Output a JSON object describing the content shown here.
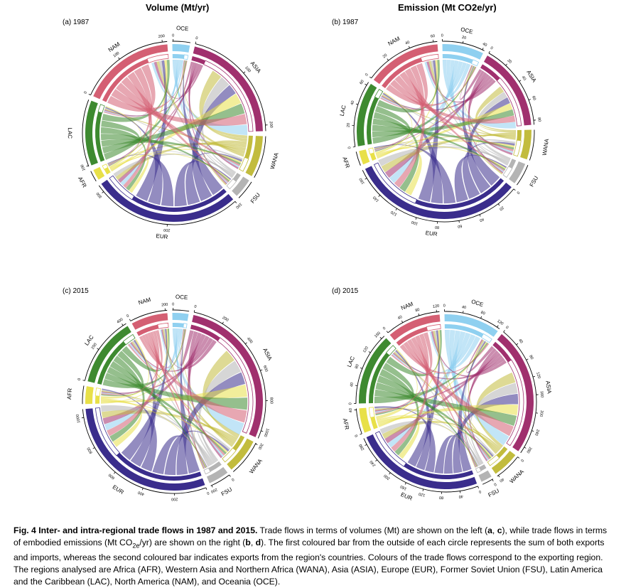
{
  "titles": {
    "left": "Volume (Mt/yr)",
    "right": "Emission (Mt CO2e/yr)"
  },
  "colors": {
    "ASIA": "#A0306E",
    "WANA": "#C2BC3E",
    "FSU": "#B4B4B4",
    "EUR": "#3A2D8C",
    "AFR": "#E8E048",
    "LAC": "#3E8A30",
    "NAM": "#D45F73",
    "OCE": "#8FD0F0"
  },
  "region_order": [
    "OCE",
    "ASIA",
    "WANA",
    "FSU",
    "EUR",
    "AFR",
    "LAC",
    "NAM"
  ],
  "chart_data": [
    {
      "type": "chord",
      "panel_label": "(a) 1987",
      "title": "Volume (Mt/yr)",
      "segments": [
        {
          "region": "OCE",
          "total": 40,
          "exports": 30,
          "ticks": [
            "0"
          ]
        },
        {
          "region": "ASIA",
          "total": 265,
          "exports": 35,
          "ticks": [
            "0",
            "100",
            "200"
          ]
        },
        {
          "region": "WANA",
          "total": 95,
          "exports": 60,
          "ticks": []
        },
        {
          "region": "FSU",
          "total": 45,
          "exports": 20,
          "ticks": []
        },
        {
          "region": "EUR",
          "total": 340,
          "exports": 260,
          "ticks": [
            "100",
            "200",
            "300"
          ]
        },
        {
          "region": "AFR",
          "total": 25,
          "exports": 15,
          "ticks": []
        },
        {
          "region": "LAC",
          "total": 150,
          "exports": 130,
          "ticks": [
            "100"
          ]
        },
        {
          "region": "NAM",
          "total": 215,
          "exports": 160,
          "ticks": [
            "0",
            "100",
            "200"
          ]
        }
      ]
    },
    {
      "type": "chord",
      "panel_label": "(b) 1987",
      "title": "Emission (Mt CO2e/yr)",
      "segments": [
        {
          "region": "OCE",
          "total": 42,
          "exports": 35,
          "ticks": [
            "0",
            "20",
            "40"
          ]
        },
        {
          "region": "ASIA",
          "total": 85,
          "exports": 25,
          "ticks": [
            "0",
            "20",
            "40",
            "60",
            "80"
          ]
        },
        {
          "region": "WANA",
          "total": 30,
          "exports": 12,
          "ticks": []
        },
        {
          "region": "FSU",
          "total": 22,
          "exports": 10,
          "ticks": []
        },
        {
          "region": "EUR",
          "total": 175,
          "exports": 110,
          "ticks": [
            "0",
            "20",
            "40",
            "60",
            "80",
            "100",
            "120",
            "140",
            "160"
          ]
        },
        {
          "region": "AFR",
          "total": 14,
          "exports": 8,
          "ticks": []
        },
        {
          "region": "LAC",
          "total": 65,
          "exports": 55,
          "ticks": [
            "0",
            "20",
            "40",
            "60"
          ]
        },
        {
          "region": "NAM",
          "total": 75,
          "exports": 55,
          "ticks": [
            "0",
            "20",
            "40",
            "60"
          ]
        }
      ]
    },
    {
      "type": "chord",
      "panel_label": "(c) 2015",
      "title": "Volume (Mt/yr)",
      "segments": [
        {
          "region": "OCE",
          "total": 110,
          "exports": 85,
          "ticks": [
            "0"
          ]
        },
        {
          "region": "ASIA",
          "total": 1050,
          "exports": 240,
          "ticks": [
            "0",
            "200",
            "400",
            "600",
            "800",
            "1000"
          ]
        },
        {
          "region": "WANA",
          "total": 240,
          "exports": 120,
          "ticks": [
            "200"
          ]
        },
        {
          "region": "FSU",
          "total": 140,
          "exports": 100,
          "ticks": [
            "0",
            "200"
          ]
        },
        {
          "region": "EUR",
          "total": 1100,
          "exports": 700,
          "ticks": [
            "0",
            "200",
            "400",
            "600",
            "800",
            "1000"
          ]
        },
        {
          "region": "AFR",
          "total": 120,
          "exports": 60,
          "ticks": []
        },
        {
          "region": "LAC",
          "total": 470,
          "exports": 380,
          "ticks": [
            "0",
            "200",
            "400"
          ]
        },
        {
          "region": "NAM",
          "total": 250,
          "exports": 170,
          "ticks": [
            "0",
            "200"
          ]
        }
      ]
    },
    {
      "type": "chord",
      "panel_label": "(d) 2015",
      "title": "Emission (Mt CO2e/yr)",
      "segments": [
        {
          "region": "OCE",
          "total": 125,
          "exports": 100,
          "ticks": [
            "0",
            "40",
            "80",
            "120"
          ]
        },
        {
          "region": "ASIA",
          "total": 285,
          "exports": 60,
          "ticks": [
            "0",
            "40",
            "80",
            "120",
            "160",
            "200",
            "240",
            "280"
          ]
        },
        {
          "region": "WANA",
          "total": 60,
          "exports": 30,
          "ticks": [
            "0",
            "40"
          ]
        },
        {
          "region": "FSU",
          "total": 25,
          "exports": 15,
          "ticks": [
            "0"
          ]
        },
        {
          "region": "EUR",
          "total": 290,
          "exports": 180,
          "ticks": [
            "0",
            "40",
            "80",
            "120",
            "160",
            "200",
            "240",
            "280"
          ]
        },
        {
          "region": "AFR",
          "total": 55,
          "exports": 30,
          "ticks": [
            "0",
            "40"
          ]
        },
        {
          "region": "LAC",
          "total": 160,
          "exports": 135,
          "ticks": [
            "0",
            "40",
            "80",
            "120",
            "160"
          ]
        },
        {
          "region": "NAM",
          "total": 120,
          "exports": 85,
          "ticks": [
            "0",
            "40",
            "80",
            "120"
          ]
        }
      ]
    }
  ],
  "caption": {
    "bold": "Fig. 4 Inter- and intra-regional trade flows in 1987 and 2015.",
    "part1": " Trade flows in terms of volumes (Mt) are shown on the left (",
    "b1": "a",
    "sep1": ", ",
    "b2": "c",
    "part2": "), while trade flows in terms of embodied emissions (Mt CO",
    "sub": "2e",
    "part3": "/yr) are shown on the right (",
    "b3": "b",
    "sep2": ", ",
    "b4": "d",
    "part4": "). The first coloured bar from the outside of each circle represents the sum of both exports and imports, whereas the second coloured bar indicates exports from the region's countries. Colours of the trade flows correspond to the exporting region. The regions analysed are Africa (AFR), Western Asia and Northern Africa (WANA), Asia (ASIA), Europe (EUR), Former Soviet Union (FSU), Latin America and the Caribbean (LAC), North America (NAM), and Oceania (OCE)."
  }
}
